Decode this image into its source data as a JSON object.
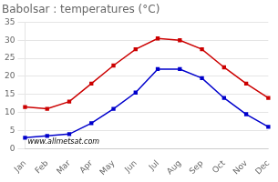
{
  "chart_data": {
    "type": "line",
    "title": "Babolsar : temperatures (°C)",
    "categories": [
      "Jan",
      "Feb",
      "Mar",
      "Apr",
      "May",
      "Jun",
      "Jul",
      "Aug",
      "Sep",
      "Oct",
      "Nov",
      "Dec"
    ],
    "series": [
      {
        "color": "#cc0000",
        "marker": "square",
        "values": [
          11.5,
          11.0,
          13.0,
          18.0,
          23.0,
          27.5,
          30.5,
          30.0,
          27.5,
          22.5,
          18.0,
          14.0
        ]
      },
      {
        "color": "#0000cc",
        "marker": "square",
        "values": [
          3.0,
          3.5,
          4.0,
          7.0,
          11.0,
          15.5,
          22.0,
          22.0,
          19.5,
          14.0,
          9.5,
          6.0
        ]
      }
    ],
    "ylim": [
      0,
      35
    ],
    "yticks": [
      0,
      5,
      10,
      15,
      20,
      25,
      30,
      35
    ],
    "grid": "y",
    "annotations": [
      "www.allmetsat.com"
    ]
  }
}
